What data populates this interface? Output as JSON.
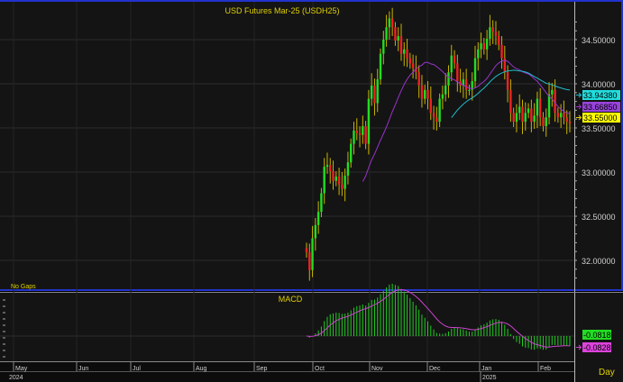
{
  "title": "USD Futures  Mar-25  (USDH25)",
  "no_gaps_label": "No Gaps",
  "period_label": "Day",
  "colors": {
    "up": "#22dd22",
    "down": "#ee2222",
    "wick": "#c8b400",
    "ma_fast": "#9933cc",
    "ma_slow": "#22bbcc",
    "macd_hist": "#22cc22",
    "macd_signal": "#cc44cc",
    "text": "#e0d000",
    "axis_text": "#d0d0d0",
    "border": "#2233cc"
  },
  "chart_data": [
    {
      "type": "candlestick",
      "title": "USD Futures  Mar-25  (USDH25)",
      "y_ticks": [
        "34.50000",
        "34.00000",
        "33.50000",
        "33.00000",
        "32.50000",
        "32.00000"
      ],
      "ylim": [
        31.72,
        34.82
      ],
      "grid": true,
      "closes": [
        32.09,
        31.89,
        32.25,
        32.4,
        32.55,
        32.76,
        33.06,
        33.08,
        33.01,
        32.9,
        32.95,
        32.86,
        32.81,
        32.96,
        33.11,
        33.32,
        33.47,
        33.44,
        33.42,
        33.52,
        33.32,
        33.83,
        33.98,
        33.78,
        34.05,
        34.34,
        34.5,
        34.64,
        34.74,
        34.64,
        34.49,
        34.54,
        34.34,
        34.39,
        34.29,
        34.23,
        34.18,
        34.13,
        33.98,
        33.83,
        33.93,
        33.83,
        33.67,
        33.62,
        33.57,
        33.83,
        33.88,
        33.98,
        34.13,
        34.32,
        34.23,
        34.03,
        33.98,
        34.05,
        33.93,
        33.93,
        34.03,
        34.29,
        34.39,
        34.46,
        34.39,
        34.51,
        34.64,
        34.59,
        34.54,
        34.44,
        34.29,
        34.13,
        33.93,
        33.67,
        33.57,
        33.67,
        33.74,
        33.57,
        33.67,
        33.72,
        33.57,
        33.64,
        33.83,
        33.62,
        33.52,
        33.62,
        33.88,
        33.93,
        33.67,
        33.62,
        33.67,
        33.62,
        33.57,
        33.55
      ],
      "last_value_labels": [
        {
          "value": "33.94380",
          "series": "ma_slow"
        },
        {
          "value": "33.66850",
          "series": "ma_fast"
        },
        {
          "value": "33.55000",
          "series": "price"
        }
      ]
    },
    {
      "type": "bar+line",
      "title": "MACD",
      "last_value_labels": [
        {
          "value": "-0.0818",
          "series": "histogram"
        },
        {
          "value": "-0.0828",
          "series": "signal"
        }
      ]
    }
  ],
  "time_axis": {
    "months": [
      "May",
      "Jun",
      "Jul",
      "Aug",
      "Sep",
      "Oct",
      "Nov",
      "Dec",
      "Jan",
      "Feb"
    ],
    "years": [
      "2024",
      "2025"
    ]
  }
}
